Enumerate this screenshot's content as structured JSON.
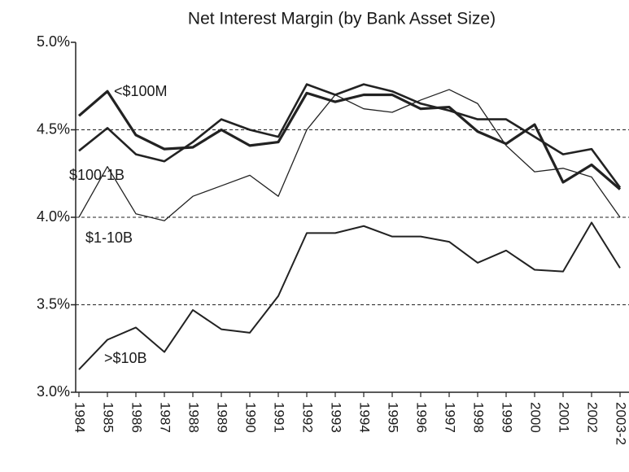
{
  "chart_data": {
    "type": "line",
    "title": "Net Interest Margin (by Bank Asset Size)",
    "categories": [
      "1984",
      "1985",
      "1986",
      "1987",
      "1988",
      "1989",
      "1990",
      "1991",
      "1992",
      "1993",
      "1994",
      "1995",
      "1996",
      "1997",
      "1998",
      "1999",
      "2000",
      "2001",
      "2002",
      "2003-2"
    ],
    "series": [
      {
        "name": "<$100M",
        "color": "#222222",
        "line_width": 3.2,
        "values": [
          4.58,
          4.72,
          4.47,
          4.39,
          4.4,
          4.5,
          4.41,
          4.43,
          4.71,
          4.66,
          4.7,
          4.7,
          4.62,
          4.63,
          4.49,
          4.42,
          4.53,
          4.2,
          4.3,
          4.16
        ]
      },
      {
        "name": "$100-1B",
        "color": "#222222",
        "line_width": 2.6,
        "values": [
          4.38,
          4.51,
          4.36,
          4.32,
          4.43,
          4.56,
          4.5,
          4.46,
          4.76,
          4.7,
          4.76,
          4.72,
          4.65,
          4.61,
          4.56,
          4.56,
          4.46,
          4.36,
          4.39,
          4.17
        ]
      },
      {
        "name": "$1-10B",
        "color": "#222222",
        "line_width": 1.3,
        "values": [
          4.0,
          4.29,
          4.02,
          3.98,
          4.12,
          4.18,
          4.24,
          4.12,
          4.5,
          4.7,
          4.62,
          4.6,
          4.67,
          4.73,
          4.65,
          4.41,
          4.26,
          4.28,
          4.23,
          4.0
        ]
      },
      {
        "name": ">$10B",
        "color": "#222222",
        "line_width": 2.0,
        "values": [
          3.13,
          3.3,
          3.37,
          3.23,
          3.47,
          3.36,
          3.34,
          3.55,
          3.91,
          3.91,
          3.95,
          3.89,
          3.89,
          3.86,
          3.74,
          3.81,
          3.7,
          3.69,
          3.97,
          3.71
        ]
      }
    ],
    "ylim": [
      3.0,
      5.0
    ],
    "yticks": [
      {
        "value": 3.0,
        "label": "3.0%"
      },
      {
        "value": 3.5,
        "label": "3.5%"
      },
      {
        "value": 4.0,
        "label": "4.0%"
      },
      {
        "value": 4.5,
        "label": "4.5%"
      },
      {
        "value": 5.0,
        "label": "5.0%"
      }
    ],
    "grid": true
  }
}
